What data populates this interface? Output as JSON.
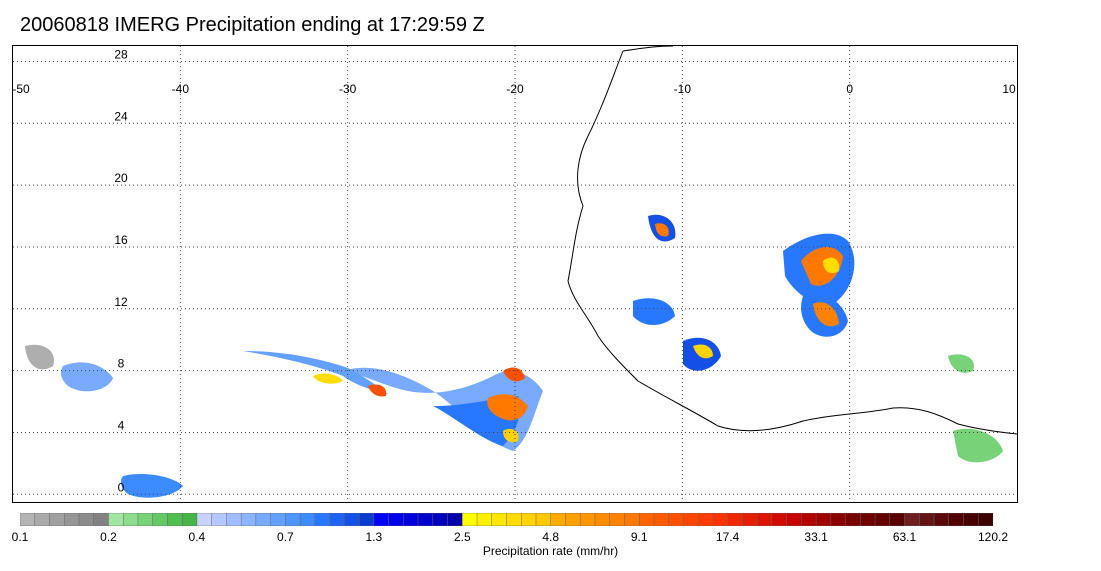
{
  "title": "20060818 IMERG Precipitation ending at 17:29:59 Z",
  "map": {
    "lon_ticks": [
      "-50",
      "-40",
      "-30",
      "-20",
      "-10",
      "0",
      "10"
    ],
    "lat_ticks": [
      "28",
      "24",
      "20",
      "16",
      "12",
      "8",
      "4",
      "0"
    ],
    "lon_range": [
      -50,
      10
    ],
    "lat_range": [
      -0.5,
      29
    ]
  },
  "colorbar": {
    "title": "Precipitation rate (mm/hr)",
    "labels": [
      "0.1",
      "0.2",
      "0.4",
      "0.7",
      "1.3",
      "2.5",
      "4.8",
      "9.1",
      "17.4",
      "33.1",
      "63.1",
      "120.2"
    ],
    "colors": [
      "#b4b4b4",
      "#aaaaaa",
      "#a0a0a0",
      "#969696",
      "#8c8c8c",
      "#828282",
      "#a0e6a0",
      "#8cdc8c",
      "#78d278",
      "#64c864",
      "#50be50",
      "#46b446",
      "#c8d2ff",
      "#b4c8ff",
      "#a0beff",
      "#8cb4ff",
      "#78aaff",
      "#64a0ff",
      "#5096ff",
      "#3c8cff",
      "#2878ff",
      "#1e64f0",
      "#1450e6",
      "#0a3cd2",
      "#0000ff",
      "#0000eb",
      "#0000dc",
      "#0000cd",
      "#0000be",
      "#0000aa",
      "#ffff00",
      "#fff000",
      "#ffe600",
      "#ffdc00",
      "#ffd200",
      "#ffc800",
      "#ffaa00",
      "#ffa000",
      "#ff9600",
      "#ff8c00",
      "#ff8200",
      "#ff7800",
      "#ff6400",
      "#ff5a00",
      "#ff5000",
      "#ff4600",
      "#ff3c00",
      "#ff3200",
      "#f02800",
      "#e61e00",
      "#dc1400",
      "#d20a00",
      "#c80000",
      "#b40000",
      "#a00000",
      "#8c0000",
      "#780000",
      "#6e0000",
      "#640000",
      "#5a0000",
      "#6e1e1e",
      "#641414",
      "#5a0a0a",
      "#500000",
      "#460000",
      "#3c0000"
    ]
  }
}
